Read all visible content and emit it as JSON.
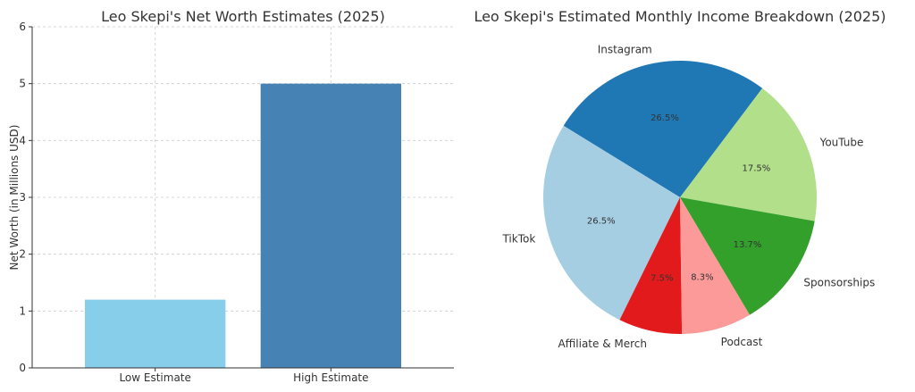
{
  "chart_data": [
    {
      "type": "bar",
      "title": "Leo Skepi's Net Worth Estimates (2025)",
      "xlabel": "",
      "ylabel": "Net Worth (in Millions USD)",
      "categories": [
        "Low Estimate",
        "High Estimate"
      ],
      "values": [
        1.2,
        5.0
      ],
      "colors": [
        "#87ceeb",
        "#4682b4"
      ],
      "ylim": [
        0,
        6
      ],
      "yticks": [
        0,
        1,
        2,
        3,
        4,
        5,
        6
      ],
      "grid": true
    },
    {
      "type": "pie",
      "title": "Leo Skepi's Estimated Monthly Income Breakdown (2025)",
      "labels": [
        "YouTube",
        "Instagram",
        "TikTok",
        "Affiliate & Merch",
        "Podcast",
        "Sponsorships"
      ],
      "values": [
        17.5,
        26.5,
        26.5,
        7.5,
        8.3,
        13.7
      ],
      "percent_labels": [
        "17.5%",
        "26.5%",
        "26.5%",
        "7.5%",
        "8.3%",
        "13.7%"
      ],
      "colors": [
        "#b2df8a",
        "#1f78b4",
        "#a6cee3",
        "#e31a1c",
        "#fb9a99",
        "#33a02c"
      ]
    }
  ]
}
